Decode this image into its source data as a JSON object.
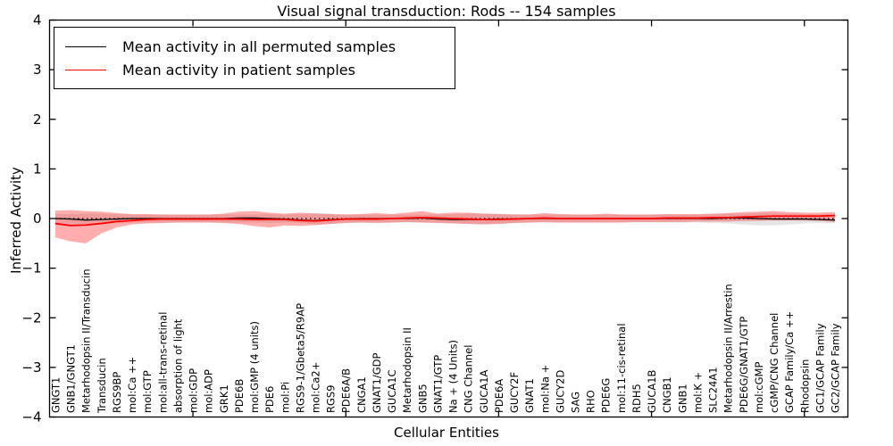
{
  "title": "Visual signal transduction: Rods -- 154 samples",
  "legend": {
    "items": [
      {
        "label": "Mean activity in all permuted samples",
        "color": "#000000"
      },
      {
        "label": "Mean activity in patient samples",
        "color": "#ff0000"
      }
    ]
  },
  "axes": {
    "ylabel": "Inferred Activity",
    "xlabel": "Cellular Entities"
  },
  "chart_data": {
    "type": "line",
    "title": "Visual signal transduction: Rods -- 154 samples",
    "xlabel": "Cellular Entities",
    "ylabel": "Inferred Activity",
    "ylim": [
      -4,
      4
    ],
    "grid": false,
    "legend_position": "upper left",
    "ytick_values": [
      4,
      3,
      2,
      1,
      0,
      -1,
      -2,
      -3,
      -4
    ],
    "ytick_labels": [
      "4",
      "3",
      "2",
      "1",
      "0",
      "−1",
      "−2",
      "−3",
      "−4"
    ],
    "xticks_major_at": [
      10,
      20,
      30,
      40,
      50
    ],
    "zero_line": true,
    "categories": [
      "GNGT1",
      "GNB1/GNGT1",
      "Metarhodopsin II/Transducin",
      "Transducin",
      "RGS9BP",
      "mol:Ca ++",
      "mol:GTP",
      "mol:all-trans-retinal",
      "absorption of light",
      "mol:GDP",
      "mol:ADP",
      "GRK1",
      "PDE6B",
      "mol:GMP (4 units)",
      "PDE6",
      "mol:Pi",
      "RGS9-1/Gbeta5/R9AP",
      "mol:Ca2+",
      "RGS9",
      "PDE6A/B",
      "CNGA1",
      "GNAT1/GDP",
      "GUCA1C",
      "Metarhodopsin II",
      "GNB5",
      "GNAT1/GTP",
      "Na + (4 Units)",
      "CNG Channel",
      "GUCA1A",
      "PDE6A",
      "GUCY2F",
      "GNAT1",
      "mol:Na +",
      "GUCY2D",
      "SAG",
      "RHO",
      "PDE6G",
      "mol:11-cis-retinal",
      "RDH5",
      "GUCA1B",
      "CNGB1",
      "GNB1",
      "mol:K +",
      "SLC24A1",
      "Metarhodopsin II/Arrestin",
      "PDE6G/GNAT1/GTP",
      "mol:cGMP",
      "cGMP/CNG Channel",
      "GCAP Family/Ca ++",
      "Rhodopsin",
      "GC1/GCAP Family",
      "GC2/GCAP Family"
    ],
    "series": [
      {
        "name": "Mean activity in all permuted samples",
        "color": "#000000",
        "width": 1.3,
        "values": [
          0.0,
          -0.01,
          -0.03,
          -0.02,
          -0.01,
          0.0,
          0.0,
          0.0,
          0.0,
          0.0,
          0.0,
          0.0,
          0.01,
          0.01,
          0.0,
          -0.01,
          -0.03,
          -0.04,
          -0.02,
          -0.01,
          0.0,
          0.0,
          0.0,
          0.0,
          0.01,
          -0.01,
          -0.02,
          -0.02,
          -0.02,
          -0.01,
          -0.01,
          0.0,
          0.0,
          0.0,
          0.0,
          0.0,
          0.0,
          0.0,
          0.0,
          0.0,
          0.0,
          0.0,
          0.0,
          0.0,
          0.01,
          0.01,
          0.0,
          -0.01,
          -0.01,
          -0.01,
          -0.02,
          -0.03
        ]
      },
      {
        "name": "Mean activity in patient samples",
        "color": "#ff0000",
        "width": 1.8,
        "values": [
          -0.1,
          -0.14,
          -0.13,
          -0.1,
          -0.06,
          -0.04,
          -0.02,
          -0.01,
          -0.01,
          -0.01,
          -0.01,
          -0.01,
          -0.01,
          -0.02,
          -0.02,
          -0.02,
          -0.04,
          -0.05,
          -0.03,
          -0.01,
          -0.01,
          -0.01,
          0.0,
          0.01,
          0.02,
          0.01,
          0.0,
          -0.01,
          -0.02,
          -0.02,
          -0.01,
          0.0,
          0.01,
          0.0,
          0.0,
          0.0,
          0.0,
          0.0,
          0.0,
          0.0,
          0.01,
          0.01,
          0.01,
          0.02,
          0.02,
          0.03,
          0.04,
          0.05,
          0.05,
          0.05,
          0.05,
          0.06
        ]
      }
    ],
    "bands": [
      {
        "name": "permuted-std-band",
        "color": "#000000",
        "opacity": 0.1,
        "upper": [
          0.09,
          0.09,
          0.1,
          0.1,
          0.09,
          0.08,
          0.08,
          0.08,
          0.08,
          0.08,
          0.08,
          0.08,
          0.08,
          0.08,
          0.09,
          0.08,
          0.09,
          0.11,
          0.1,
          0.08,
          0.08,
          0.08,
          0.08,
          0.08,
          0.08,
          0.08,
          0.09,
          0.1,
          0.1,
          0.1,
          0.09,
          0.08,
          0.08,
          0.08,
          0.08,
          0.08,
          0.08,
          0.08,
          0.08,
          0.08,
          0.08,
          0.08,
          0.08,
          0.09,
          0.1,
          0.1,
          0.11,
          0.11,
          0.1,
          0.09,
          0.09,
          0.1
        ],
        "lower": [
          -0.09,
          -0.1,
          -0.11,
          -0.1,
          -0.09,
          -0.08,
          -0.08,
          -0.08,
          -0.08,
          -0.08,
          -0.08,
          -0.08,
          -0.08,
          -0.08,
          -0.09,
          -0.08,
          -0.09,
          -0.12,
          -0.11,
          -0.08,
          -0.08,
          -0.08,
          -0.08,
          -0.08,
          -0.08,
          -0.08,
          -0.09,
          -0.1,
          -0.11,
          -0.1,
          -0.09,
          -0.08,
          -0.08,
          -0.08,
          -0.08,
          -0.08,
          -0.08,
          -0.08,
          -0.08,
          -0.08,
          -0.08,
          -0.08,
          -0.08,
          -0.09,
          -0.1,
          -0.12,
          -0.14,
          -0.14,
          -0.12,
          -0.1,
          -0.09,
          -0.1
        ]
      },
      {
        "name": "patient-std-band",
        "color": "#ff0000",
        "opacity": 0.32,
        "upper": [
          0.16,
          0.17,
          0.15,
          0.14,
          0.11,
          0.09,
          0.09,
          0.08,
          0.08,
          0.08,
          0.08,
          0.1,
          0.14,
          0.15,
          0.12,
          0.1,
          0.12,
          0.1,
          0.09,
          0.08,
          0.09,
          0.11,
          0.09,
          0.12,
          0.15,
          0.1,
          0.12,
          0.12,
          0.1,
          0.09,
          0.08,
          0.08,
          0.11,
          0.09,
          0.08,
          0.08,
          0.1,
          0.08,
          0.08,
          0.08,
          0.09,
          0.09,
          0.09,
          0.1,
          0.11,
          0.13,
          0.14,
          0.15,
          0.13,
          0.12,
          0.12,
          0.13
        ],
        "lower": [
          -0.38,
          -0.46,
          -0.5,
          -0.3,
          -0.18,
          -0.12,
          -0.1,
          -0.09,
          -0.08,
          -0.08,
          -0.08,
          -0.09,
          -0.11,
          -0.15,
          -0.18,
          -0.14,
          -0.15,
          -0.13,
          -0.11,
          -0.09,
          -0.08,
          -0.09,
          -0.08,
          -0.07,
          -0.08,
          -0.09,
          -0.1,
          -0.11,
          -0.12,
          -0.11,
          -0.09,
          -0.08,
          -0.07,
          -0.08,
          -0.08,
          -0.08,
          -0.08,
          -0.08,
          -0.07,
          -0.07,
          -0.07,
          -0.07,
          -0.06,
          -0.06,
          -0.06,
          -0.05,
          -0.05,
          -0.04,
          -0.04,
          -0.04,
          -0.05,
          -0.07
        ]
      }
    ]
  }
}
